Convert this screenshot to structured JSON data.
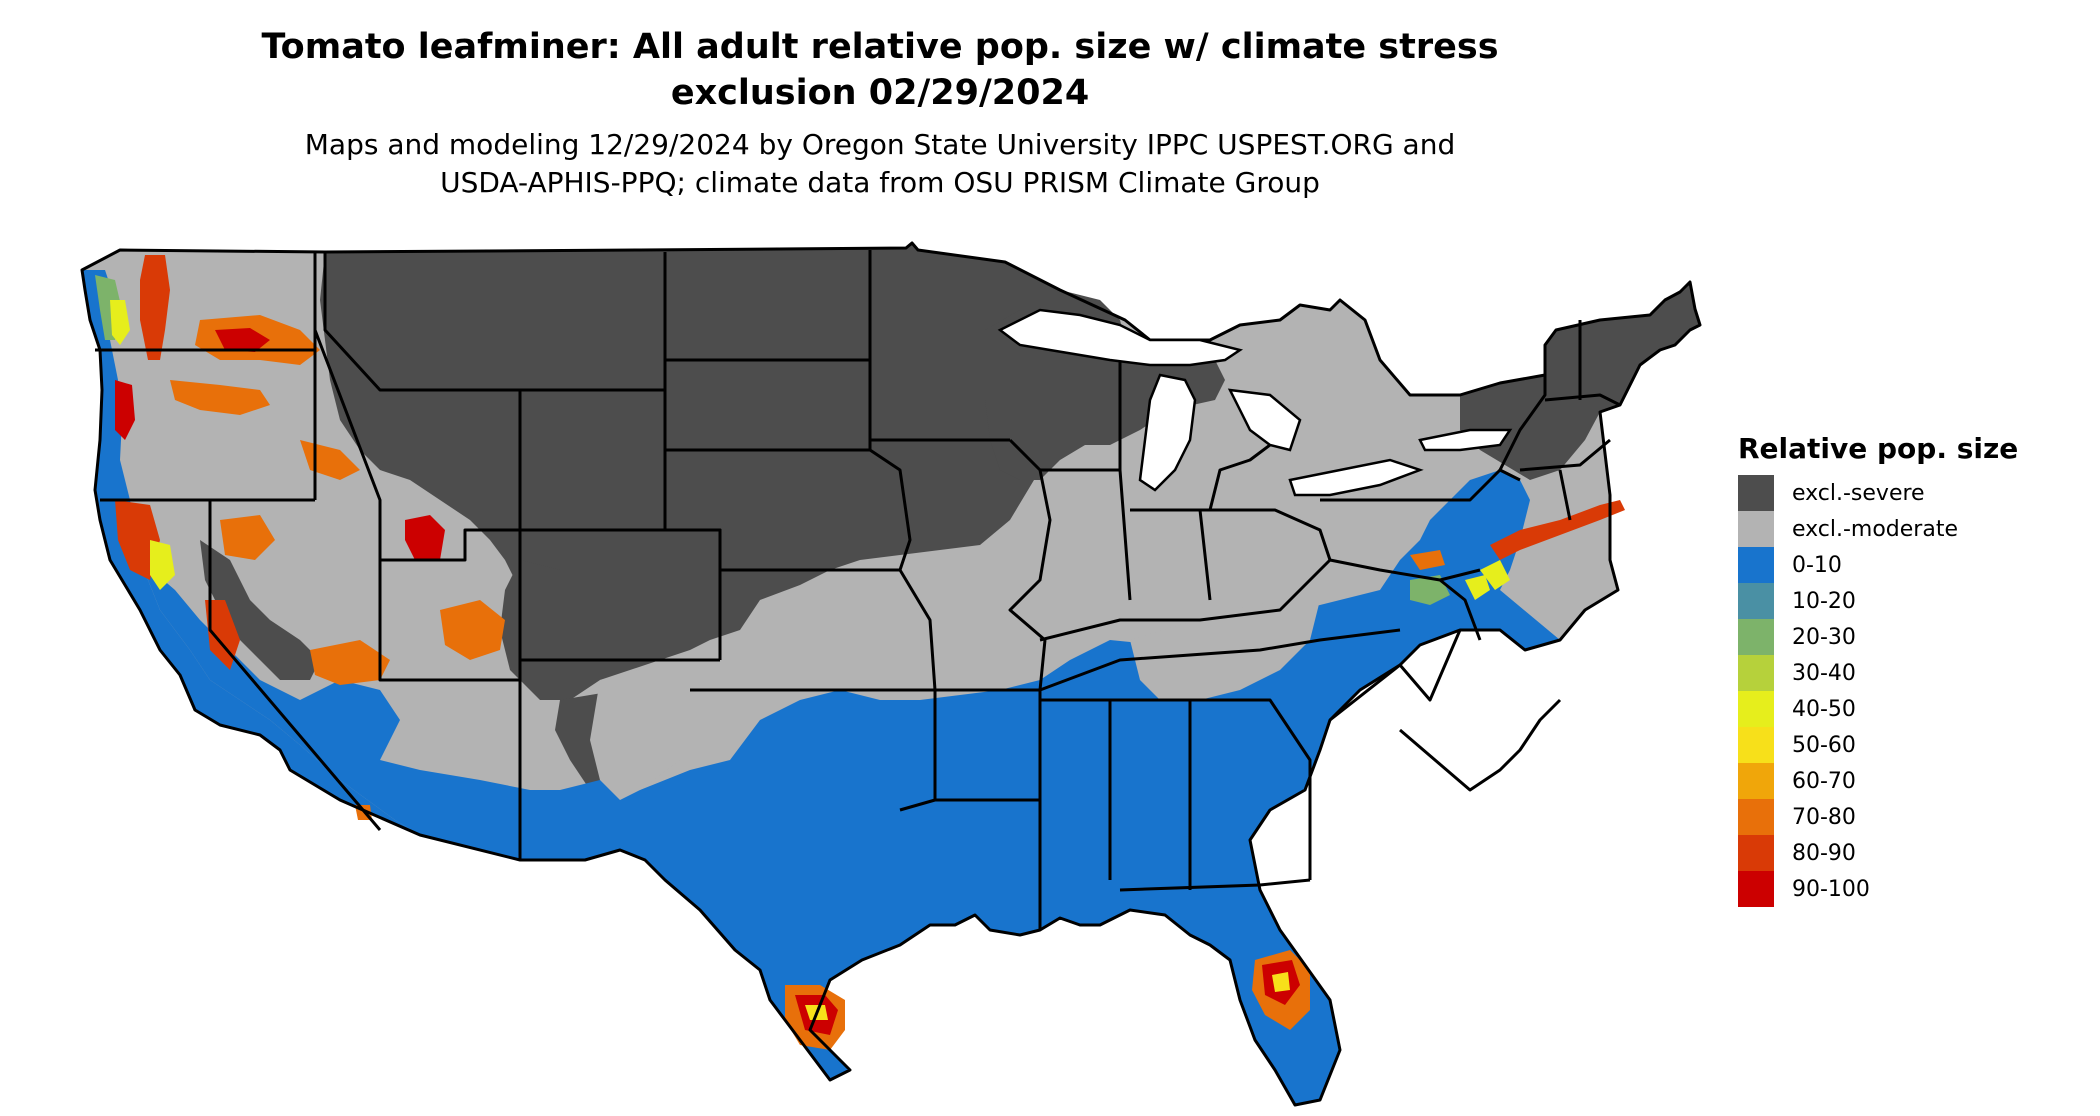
{
  "title_line1": "Tomato leafminer: All adult relative pop. size w/ climate stress",
  "title_line2": "exclusion 02/29/2024",
  "subtitle_line1": "Maps and modeling 12/29/2024 by Oregon State University IPPC USPEST.ORG and",
  "subtitle_line2": "USDA-APHIS-PPQ; climate data from OSU PRISM Climate Group",
  "legend": {
    "title": "Relative pop. size",
    "items": [
      {
        "label": "excl.-severe",
        "color": "#4d4d4d"
      },
      {
        "label": "excl.-moderate",
        "color": "#b3b3b3"
      },
      {
        "label": "0-10",
        "color": "#1874cd"
      },
      {
        "label": "10-20",
        "color": "#4a90a4"
      },
      {
        "label": "20-30",
        "color": "#7db36a"
      },
      {
        "label": "30-40",
        "color": "#b6d13b"
      },
      {
        "label": "40-50",
        "color": "#e6ee1c"
      },
      {
        "label": "50-60",
        "color": "#f7e01a"
      },
      {
        "label": "60-70",
        "color": "#f0a60a"
      },
      {
        "label": "70-80",
        "color": "#e8700a"
      },
      {
        "label": "80-90",
        "color": "#d93a06"
      },
      {
        "label": "90-100",
        "color": "#cc0000"
      }
    ]
  }
}
